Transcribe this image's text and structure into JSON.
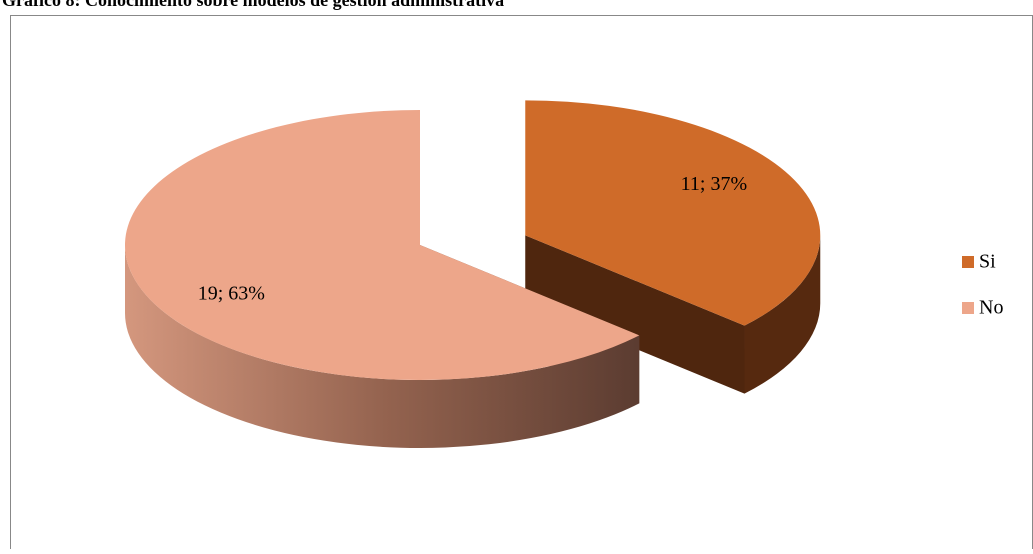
{
  "chart_data": {
    "type": "pie3d",
    "title": "Gráfico 8: Conocimiento sobre modelos de gestión administrativa",
    "categories": [
      "Si",
      "No"
    ],
    "values": [
      11,
      19
    ],
    "value_labels": [
      "11; 37%",
      "19; 63%"
    ],
    "colors": [
      "#cf6b29",
      "#eda68a"
    ],
    "legend": "right"
  }
}
